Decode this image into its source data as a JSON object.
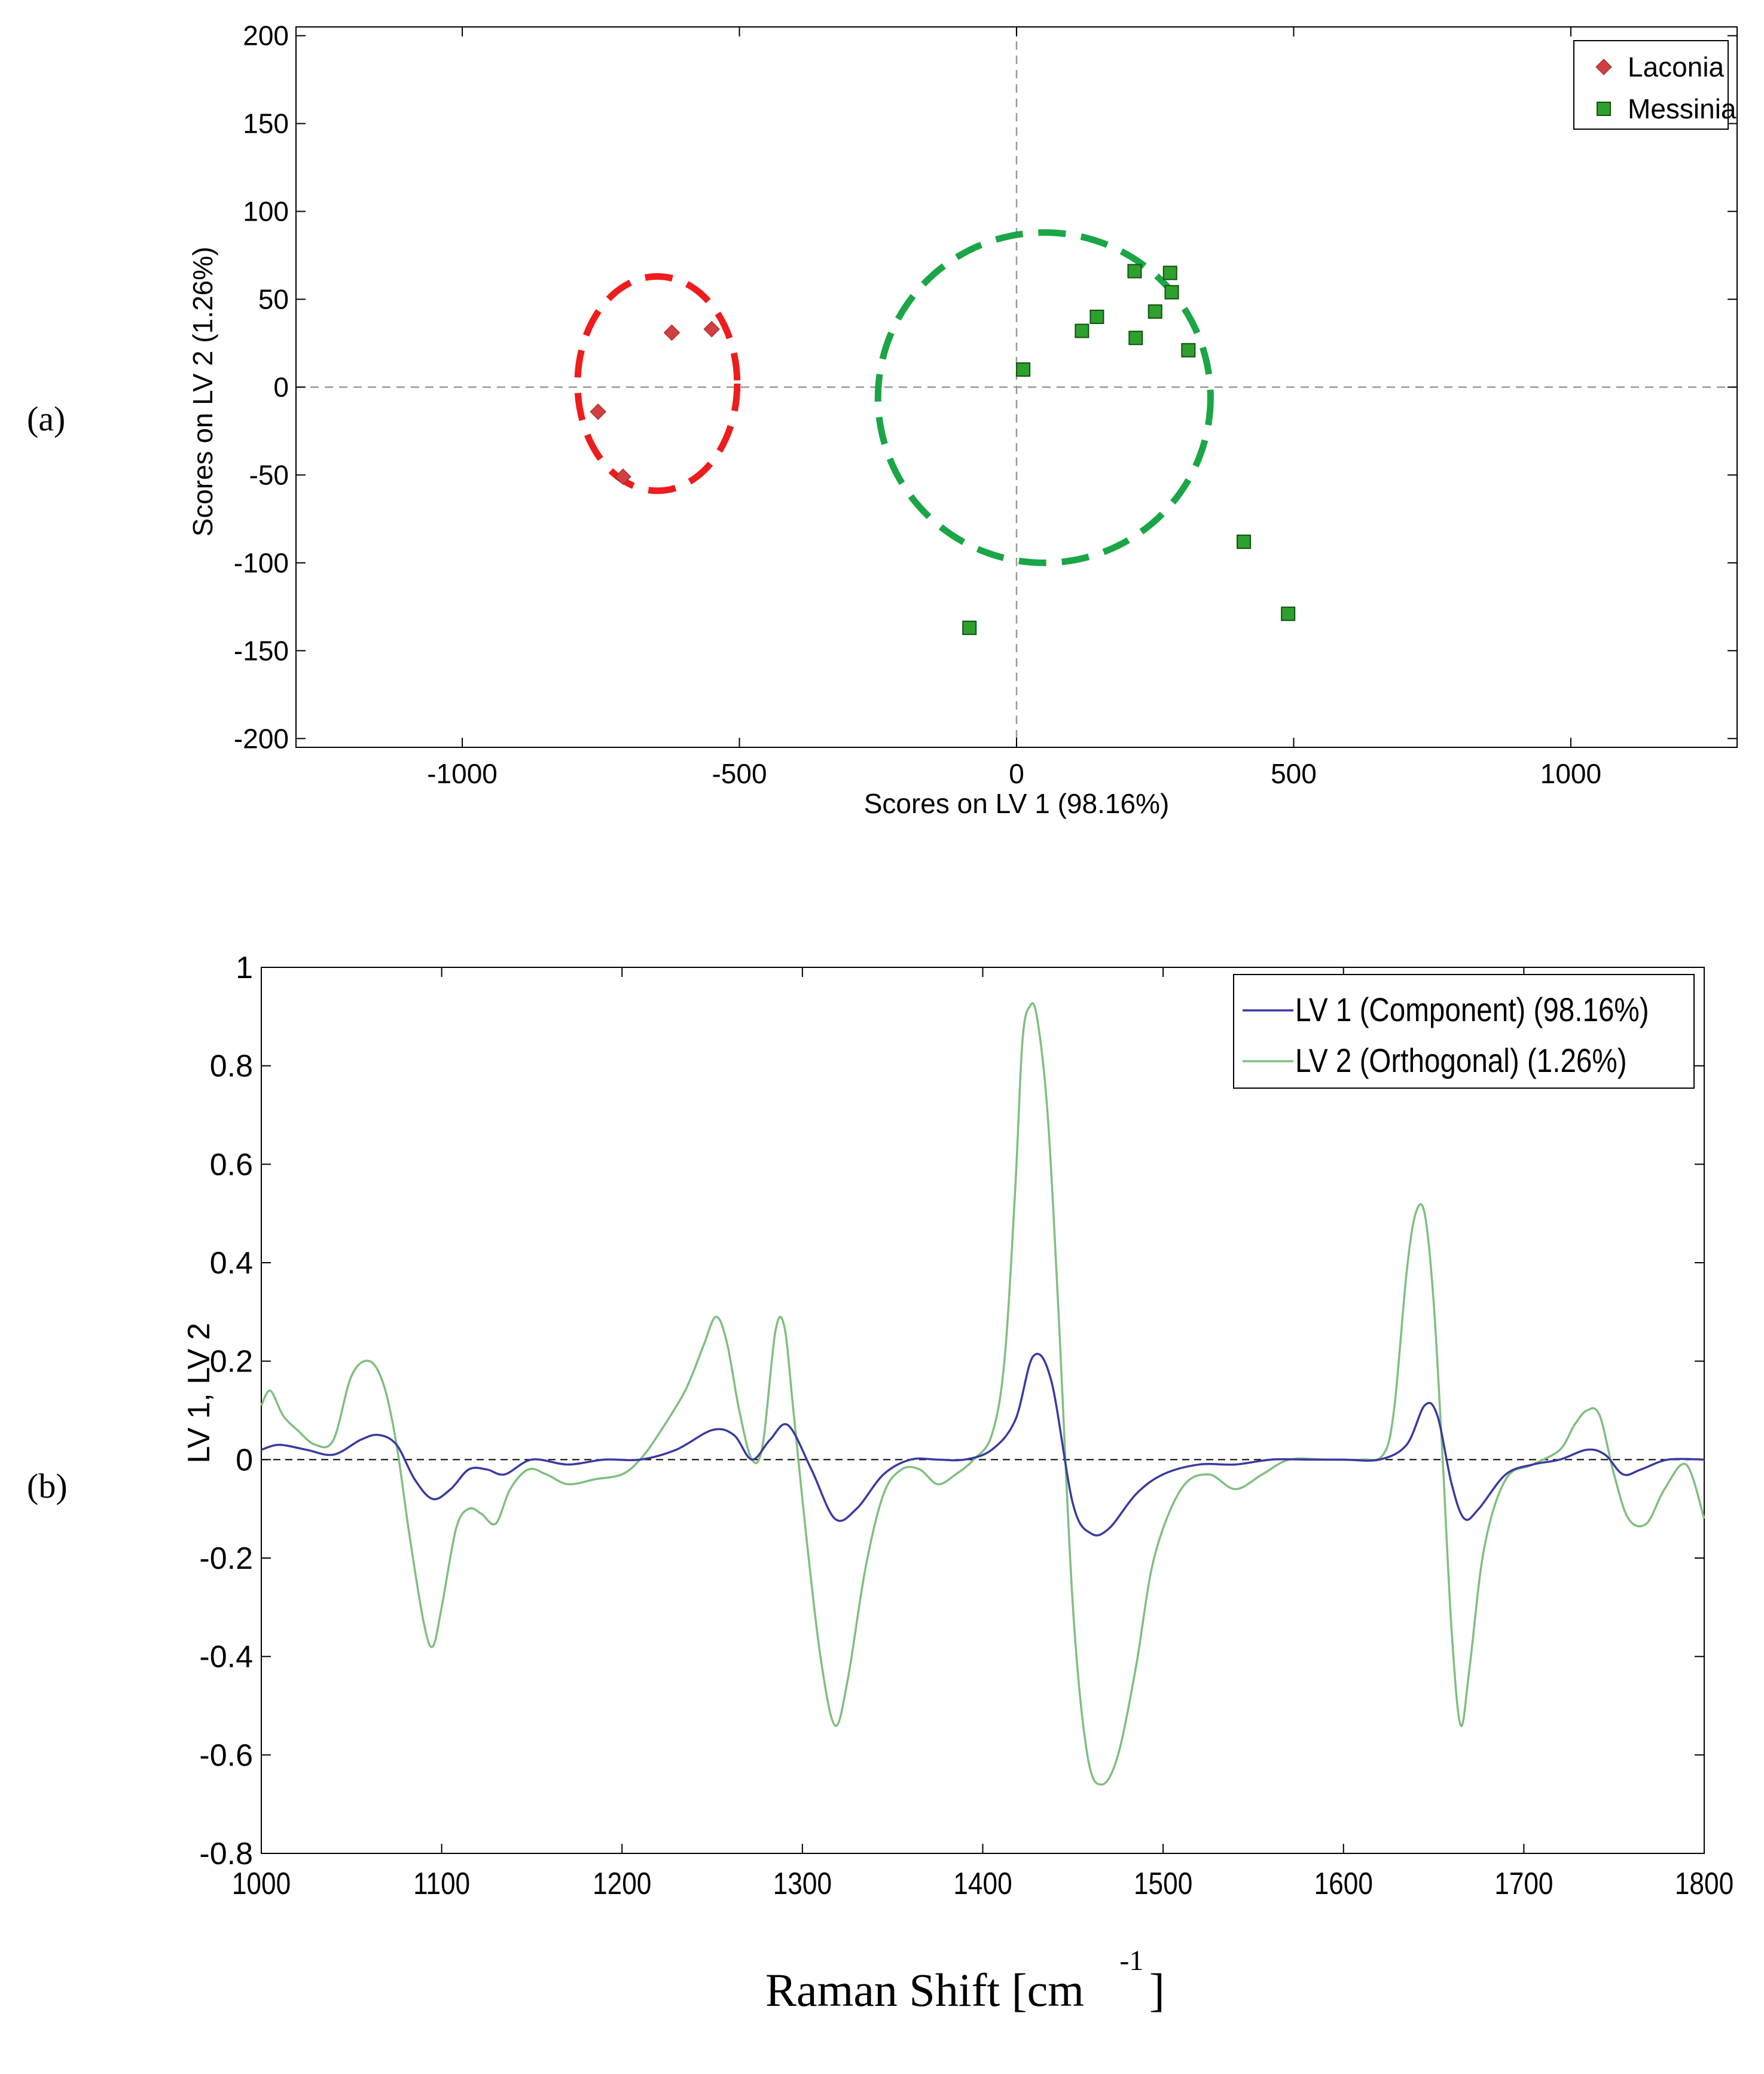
{
  "panel_labels": [
    "(a)",
    "(b)"
  ],
  "chart_data": [
    {
      "type": "scatter",
      "panel": "(a)",
      "xlabel": "Scores on LV 1 (98.16%)",
      "ylabel": "Scores on LV 2 (1.26%)",
      "xlim": [
        -1300,
        1300
      ],
      "ylim": [
        -205,
        205
      ],
      "xticks": [
        -1000,
        -500,
        0,
        500,
        1000
      ],
      "xtick_labels": [
        "-1000",
        "-500",
        "0",
        "500",
        "1000"
      ],
      "yticks": [
        200,
        150,
        100,
        50,
        0,
        -50,
        -100,
        -150,
        -200
      ],
      "ytick_labels": [
        "200",
        "150",
        "100",
        "50",
        "0",
        "-50",
        "-100",
        "-150",
        "-200"
      ],
      "grid": false,
      "legend": "top-right",
      "reference_lines": {
        "x": 0,
        "y": 0
      },
      "series": [
        {
          "name": "Laconia",
          "marker": "diamond",
          "color": "#d04040",
          "points": [
            [
              -755,
              -14
            ],
            [
              -710,
              -51
            ],
            [
              -622,
              31
            ],
            [
              -550,
              33
            ]
          ]
        },
        {
          "name": "Messinia",
          "marker": "square",
          "color": "#2ea02e",
          "points": [
            [
              12,
              10
            ],
            [
              118,
              32
            ],
            [
              145,
              40
            ],
            [
              213,
              66
            ],
            [
              215,
              28
            ],
            [
              250,
              43
            ],
            [
              277,
              65
            ],
            [
              280,
              54
            ],
            [
              310,
              21
            ],
            [
              410,
              -88
            ],
            [
              490,
              -129
            ],
            [
              -85,
              -137
            ]
          ]
        }
      ],
      "ellipses": [
        {
          "color": "#ee1c1c",
          "cx": -648,
          "cy": 2,
          "rx": 144,
          "ry": 61
        },
        {
          "color": "#1aa646",
          "cx": 50,
          "cy": -6,
          "rx": 300,
          "ry": 94
        }
      ]
    },
    {
      "type": "line",
      "panel": "(b)",
      "xlabel": "Raman Shift [cm",
      "xlabel_sup": "-1",
      "xlabel_suffix": "]",
      "ylabel": "LV 1, LV 2",
      "xlim": [
        1000,
        1800
      ],
      "ylim": [
        -0.8,
        1
      ],
      "xticks": [
        1000,
        1100,
        1200,
        1300,
        1400,
        1500,
        1600,
        1700,
        1800
      ],
      "xtick_labels": [
        "1000",
        "1100",
        "1200",
        "1300",
        "1400",
        "1500",
        "1600",
        "1700",
        "1800"
      ],
      "yticks": [
        1,
        0.8,
        0.6,
        0.4,
        0.2,
        0,
        -0.2,
        -0.4,
        -0.6,
        -0.8
      ],
      "ytick_labels": [
        "1",
        "0.8",
        "0.6",
        "0.4",
        "0.2",
        "0",
        "-0.2",
        "-0.4",
        "-0.6",
        "-0.8"
      ],
      "grid": false,
      "legend": "top-right",
      "reference_line_y": 0,
      "series": [
        {
          "name": "LV 1 (Component) (98.16%)",
          "color": "#3a3aa0",
          "x": [
            1000,
            1010,
            1025,
            1040,
            1055,
            1065,
            1075,
            1085,
            1095,
            1105,
            1115,
            1125,
            1135,
            1150,
            1170,
            1190,
            1210,
            1230,
            1250,
            1262,
            1272,
            1282,
            1292,
            1305,
            1318,
            1330,
            1345,
            1360,
            1375,
            1390,
            1405,
            1418,
            1428,
            1438,
            1450,
            1460,
            1470,
            1485,
            1500,
            1520,
            1540,
            1560,
            1580,
            1600,
            1620,
            1635,
            1645,
            1652,
            1660,
            1667,
            1675,
            1690,
            1705,
            1720,
            1735,
            1745,
            1755,
            1765,
            1780,
            1800
          ],
          "y": [
            0.02,
            0.03,
            0.02,
            0.01,
            0.04,
            0.05,
            0.03,
            -0.04,
            -0.08,
            -0.06,
            -0.02,
            -0.02,
            -0.03,
            0.0,
            -0.01,
            0.0,
            0.0,
            0.02,
            0.06,
            0.05,
            0.0,
            0.04,
            0.07,
            -0.02,
            -0.12,
            -0.1,
            -0.03,
            0.0,
            0.0,
            0.0,
            0.02,
            0.08,
            0.21,
            0.16,
            -0.09,
            -0.15,
            -0.14,
            -0.07,
            -0.03,
            -0.01,
            -0.01,
            0.0,
            0.0,
            0.0,
            0.0,
            0.03,
            0.11,
            0.09,
            -0.05,
            -0.12,
            -0.1,
            -0.03,
            -0.01,
            0.0,
            0.02,
            0.01,
            -0.03,
            -0.02,
            0.0,
            0.0
          ]
        },
        {
          "name": "LV 2 (Orthogonal) (1.26%)",
          "color": "#7fbf7f",
          "x": [
            1000,
            1005,
            1012,
            1020,
            1030,
            1040,
            1050,
            1060,
            1068,
            1075,
            1082,
            1090,
            1095,
            1100,
            1108,
            1115,
            1122,
            1130,
            1138,
            1148,
            1158,
            1170,
            1185,
            1200,
            1210,
            1220,
            1235,
            1245,
            1252,
            1258,
            1265,
            1272,
            1278,
            1285,
            1290,
            1295,
            1302,
            1310,
            1318,
            1325,
            1335,
            1345,
            1355,
            1365,
            1375,
            1385,
            1395,
            1405,
            1412,
            1418,
            1422,
            1426,
            1430,
            1436,
            1442,
            1450,
            1458,
            1466,
            1475,
            1485,
            1495,
            1510,
            1525,
            1540,
            1555,
            1570,
            1590,
            1610,
            1622,
            1628,
            1635,
            1640,
            1645,
            1650,
            1655,
            1660,
            1665,
            1670,
            1678,
            1690,
            1705,
            1720,
            1728,
            1735,
            1742,
            1750,
            1758,
            1768,
            1778,
            1790,
            1800
          ],
          "y": [
            0.11,
            0.14,
            0.09,
            0.06,
            0.03,
            0.04,
            0.17,
            0.2,
            0.15,
            0.03,
            -0.15,
            -0.33,
            -0.38,
            -0.3,
            -0.14,
            -0.1,
            -0.11,
            -0.13,
            -0.06,
            -0.02,
            -0.03,
            -0.05,
            -0.04,
            -0.03,
            0.0,
            0.05,
            0.14,
            0.23,
            0.29,
            0.24,
            0.1,
            0.0,
            0.03,
            0.26,
            0.27,
            0.1,
            -0.15,
            -0.4,
            -0.54,
            -0.45,
            -0.22,
            -0.07,
            -0.02,
            -0.02,
            -0.05,
            -0.03,
            0.0,
            0.05,
            0.2,
            0.55,
            0.85,
            0.92,
            0.9,
            0.7,
            0.3,
            -0.3,
            -0.6,
            -0.66,
            -0.6,
            -0.42,
            -0.2,
            -0.06,
            -0.03,
            -0.06,
            -0.03,
            0.0,
            0.0,
            0.0,
            0.01,
            0.1,
            0.38,
            0.5,
            0.5,
            0.32,
            0.0,
            -0.35,
            -0.54,
            -0.42,
            -0.18,
            -0.04,
            -0.01,
            0.02,
            0.07,
            0.1,
            0.09,
            -0.03,
            -0.12,
            -0.13,
            -0.06,
            -0.01,
            -0.12
          ]
        }
      ]
    }
  ]
}
